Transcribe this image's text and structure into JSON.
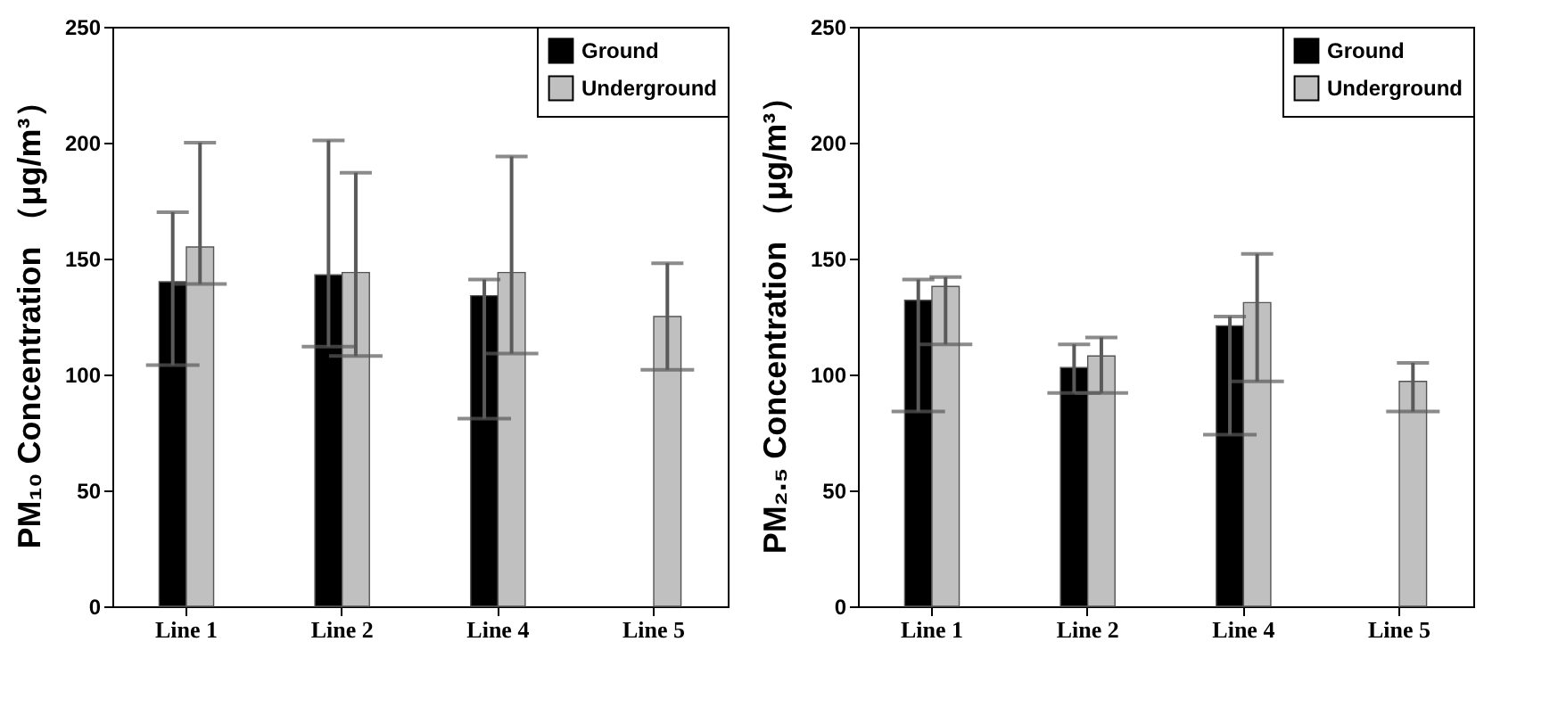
{
  "chart_data": [
    {
      "type": "bar",
      "ylabel": "PM₁₀ Concentration （μg/m³）",
      "categories": [
        "Line 1",
        "Line 2",
        "Line 4",
        "Line 5"
      ],
      "ylim": [
        0,
        250
      ],
      "yticks": [
        0,
        50,
        100,
        150,
        200,
        250
      ],
      "legend": "top right",
      "series": [
        {
          "name": "Ground",
          "color": "#000000",
          "values": [
            140,
            143,
            134,
            null
          ],
          "errors": [
            [
              104,
              170
            ],
            [
              112,
              201
            ],
            [
              81,
              141
            ],
            null
          ]
        },
        {
          "name": "Underground",
          "color": "#c0c0c0",
          "values": [
            155,
            144,
            144,
            125
          ],
          "errors": [
            [
              139,
              200
            ],
            [
              108,
              187
            ],
            [
              109,
              194
            ],
            [
              102,
              148
            ]
          ]
        }
      ]
    },
    {
      "type": "bar",
      "ylabel": "PM₂.₅ Concentration （μg/m³）",
      "categories": [
        "Line 1",
        "Line 2",
        "Line 4",
        "Line 5"
      ],
      "ylim": [
        0,
        250
      ],
      "yticks": [
        0,
        50,
        100,
        150,
        200,
        250
      ],
      "legend": "top right",
      "series": [
        {
          "name": "Ground",
          "color": "#000000",
          "values": [
            132,
            103,
            121,
            null
          ],
          "errors": [
            [
              84,
              141
            ],
            [
              92,
              113
            ],
            [
              74,
              125
            ],
            null
          ]
        },
        {
          "name": "Underground",
          "color": "#c0c0c0",
          "values": [
            138,
            108,
            131,
            97
          ],
          "errors": [
            [
              113,
              142
            ],
            [
              92,
              116
            ],
            [
              97,
              152
            ],
            [
              84,
              105
            ]
          ]
        }
      ]
    }
  ]
}
